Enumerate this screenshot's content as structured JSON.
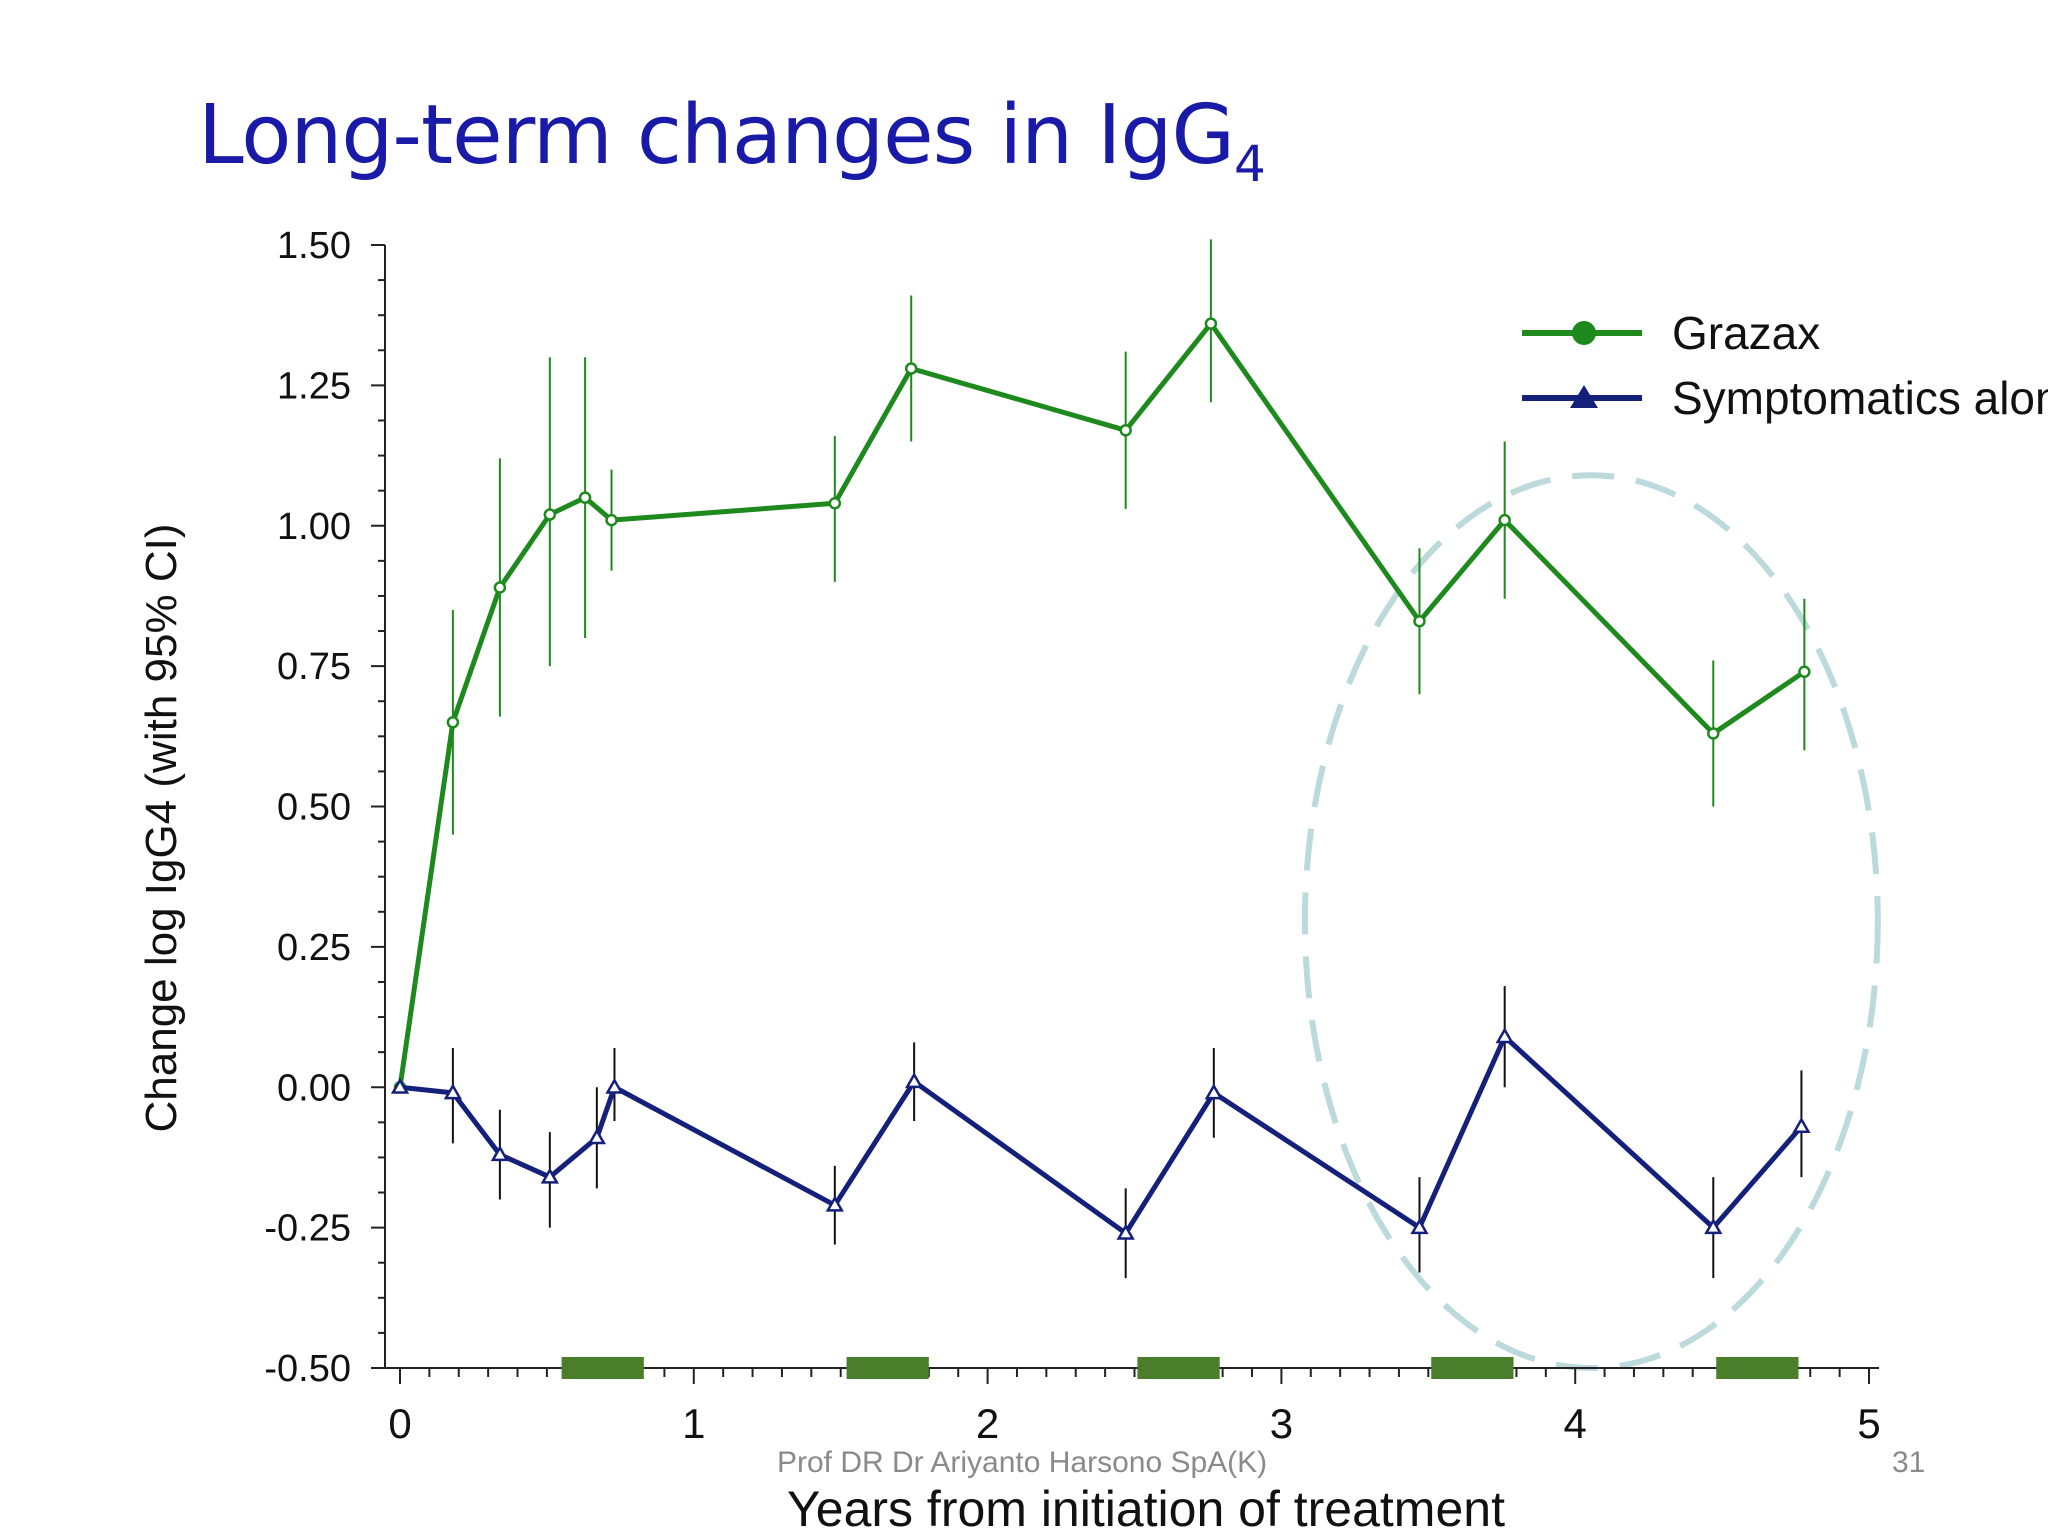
{
  "slide": {
    "title_main": "Long-term changes in IgG",
    "title_sub": "4",
    "footer_author": "Prof DR Dr Ariyanto Harsono SpA(K)",
    "page_number": "31"
  },
  "chart_data": {
    "type": "line",
    "title": "Long-term changes in IgG4",
    "xlabel": "Years from initiation of treatment",
    "ylabel": "Change log IgG4 (with 95% CI)",
    "xlim": [
      0,
      5
    ],
    "ylim": [
      -0.5,
      1.5
    ],
    "x_ticks": [
      0,
      1,
      2,
      3,
      4,
      5
    ],
    "x_tick_labels": [
      "0",
      "1",
      "2",
      "3",
      "4",
      "5"
    ],
    "y_ticks": [
      1.5,
      1.25,
      1.0,
      0.75,
      0.5,
      0.25,
      0.0,
      -0.25,
      -0.5
    ],
    "y_tick_labels": [
      "1.50",
      "1.25",
      "1.00",
      "0.75",
      "0.50",
      "0.25",
      "0.00",
      "-0.25",
      "-0.50"
    ],
    "legend_position": "top-right",
    "series": [
      {
        "name": "Grazax",
        "legend_label": "Grazax",
        "color": "#1e8a1e",
        "marker": "circle",
        "x": [
          0,
          0.18,
          0.34,
          0.51,
          0.63,
          0.72,
          1.48,
          1.74,
          2.47,
          2.76,
          3.47,
          3.76,
          4.47,
          4.78
        ],
        "y": [
          0.0,
          0.65,
          0.89,
          1.02,
          1.05,
          1.01,
          1.04,
          1.28,
          1.17,
          1.36,
          0.83,
          1.01,
          0.63,
          0.74
        ],
        "ci_low": [
          0.0,
          0.45,
          0.66,
          0.75,
          0.8,
          0.92,
          0.9,
          1.15,
          1.03,
          1.22,
          0.7,
          0.87,
          0.5,
          0.6
        ],
        "ci_high": [
          0.0,
          0.85,
          1.12,
          1.3,
          1.3,
          1.1,
          1.16,
          1.41,
          1.31,
          1.51,
          0.96,
          1.15,
          0.76,
          0.87
        ]
      },
      {
        "name": "Symptomatics alone",
        "legend_label": "Symptomatics alone",
        "color": "#14207a",
        "marker": "triangle",
        "x": [
          0,
          0.18,
          0.34,
          0.51,
          0.67,
          0.73,
          1.48,
          1.75,
          2.47,
          2.77,
          3.47,
          3.76,
          4.47,
          4.77
        ],
        "y": [
          0.0,
          -0.01,
          -0.12,
          -0.16,
          -0.09,
          0.0,
          -0.21,
          0.01,
          -0.26,
          -0.01,
          -0.25,
          0.09,
          -0.25,
          -0.07
        ],
        "ci_low": [
          0.0,
          -0.1,
          -0.2,
          -0.25,
          -0.18,
          -0.06,
          -0.28,
          -0.06,
          -0.34,
          -0.09,
          -0.33,
          0.0,
          -0.34,
          -0.16
        ],
        "ci_high": [
          0.0,
          0.07,
          -0.04,
          -0.08,
          0.0,
          0.07,
          -0.14,
          0.08,
          -0.18,
          0.07,
          -0.16,
          0.18,
          -0.16,
          0.03
        ]
      }
    ],
    "treatment_periods": [
      [
        0.55,
        0.83
      ],
      [
        1.52,
        1.8
      ],
      [
        2.51,
        2.79
      ],
      [
        3.51,
        3.79
      ],
      [
        4.48,
        4.76
      ]
    ],
    "treatment_period_color": "#4b7e2a",
    "highlight_ellipse": {
      "x_range": [
        3.08,
        5.03
      ],
      "y_range": [
        -0.5,
        1.09
      ],
      "color": "#bcdadb"
    }
  },
  "colors": {
    "title": "#1a1aa8",
    "grazax": "#1e8a1e",
    "symptomatics": "#14207a",
    "footer": "#8a8a8a"
  }
}
